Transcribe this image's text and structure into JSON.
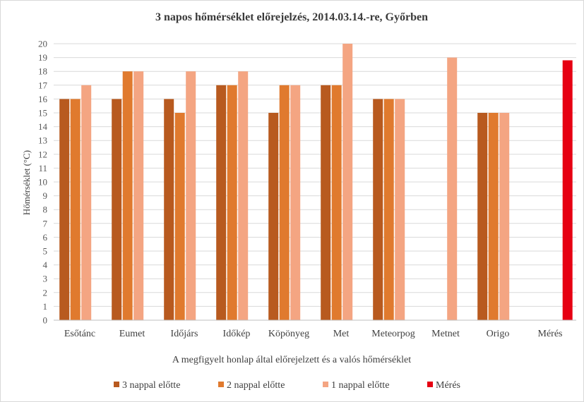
{
  "chart_data": {
    "type": "bar",
    "title": "3 napos hőmérséklet előrejelzés, 2014.03.14.-re, Győrben",
    "xlabel": "A megfigyelt  honlap  által  előrejelzett  és a valós hőmérséklet",
    "ylabel": "Hőmérséklet  (°C)",
    "ylim": [
      0,
      20
    ],
    "ytick_step": 1,
    "grid": true,
    "legend_position": "bottom",
    "categories": [
      "Esőtánc",
      "Eumet",
      "Időjárs",
      "Időkép",
      "Köpönyeg",
      "Met",
      "Meteorpog",
      "Metnet",
      "Origo",
      "Mérés"
    ],
    "series": [
      {
        "name": "3 nappal előtte",
        "color": "#b85a1f",
        "values": [
          16,
          16,
          16,
          17,
          15,
          17,
          16,
          null,
          15,
          null
        ]
      },
      {
        "name": "2 nappal előtte",
        "color": "#e07a2e",
        "values": [
          16,
          18,
          15,
          17,
          17,
          17,
          16,
          null,
          15,
          null
        ]
      },
      {
        "name": "1 nappal előtte",
        "color": "#f4a582",
        "values": [
          17,
          18,
          18,
          18,
          17,
          20,
          16,
          19,
          15,
          null
        ]
      },
      {
        "name": "Mérés",
        "color": "#e60012",
        "values": [
          null,
          null,
          null,
          null,
          null,
          null,
          null,
          null,
          null,
          18.8
        ]
      }
    ]
  }
}
